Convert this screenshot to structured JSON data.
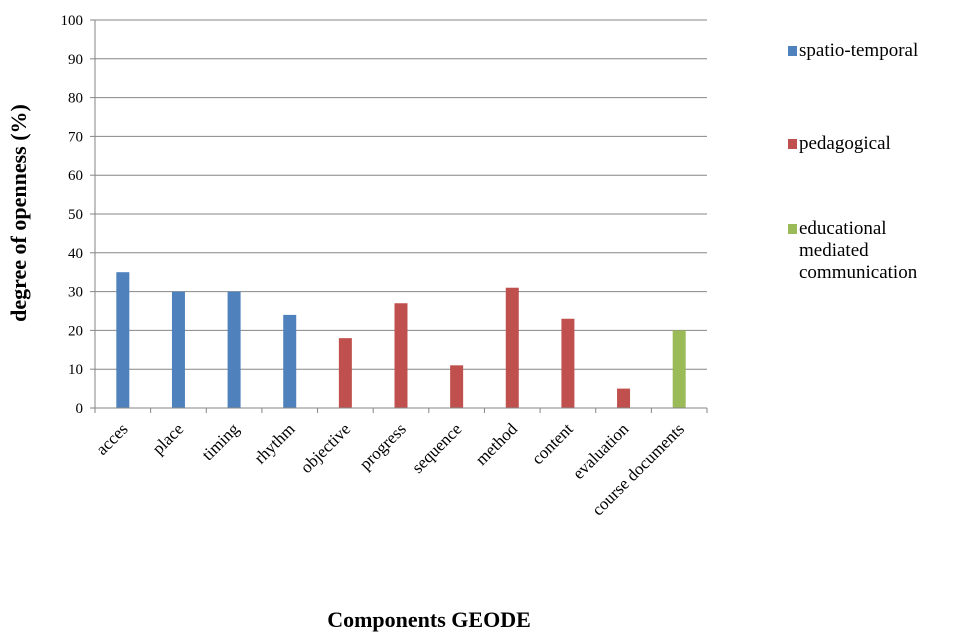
{
  "chart_data": {
    "type": "bar",
    "title": "",
    "xlabel": "Components GEODE",
    "ylabel": "degree of openness (%)",
    "ylim": [
      0,
      100
    ],
    "yticks": [
      0,
      10,
      20,
      30,
      40,
      50,
      60,
      70,
      80,
      90,
      100
    ],
    "grid": true,
    "legend_position": "right",
    "categories": [
      "acces",
      "place",
      "timing",
      "rhythm",
      "objective",
      "progress",
      "sequence",
      "method",
      "content",
      "evaluation",
      "course documents"
    ],
    "series": [
      {
        "name": "spatio-temporal",
        "color": "#4F81BD",
        "values": [
          35,
          30,
          30,
          24,
          null,
          null,
          null,
          null,
          null,
          null,
          null
        ]
      },
      {
        "name": "pedagogical",
        "color": "#C0504D",
        "values": [
          null,
          null,
          null,
          null,
          18,
          27,
          11,
          31,
          23,
          5,
          null
        ]
      },
      {
        "name": "educational mediated communication",
        "color": "#9BBB59",
        "values": [
          null,
          null,
          null,
          null,
          null,
          null,
          null,
          null,
          null,
          null,
          20
        ]
      }
    ]
  },
  "legend": {
    "items": [
      {
        "label": "spatio-temporal",
        "color": "#4F81BD"
      },
      {
        "label": "pedagogical",
        "color": "#C0504D"
      },
      {
        "label": "educational\nmediated\ncommunication",
        "color": "#9BBB59"
      }
    ]
  }
}
